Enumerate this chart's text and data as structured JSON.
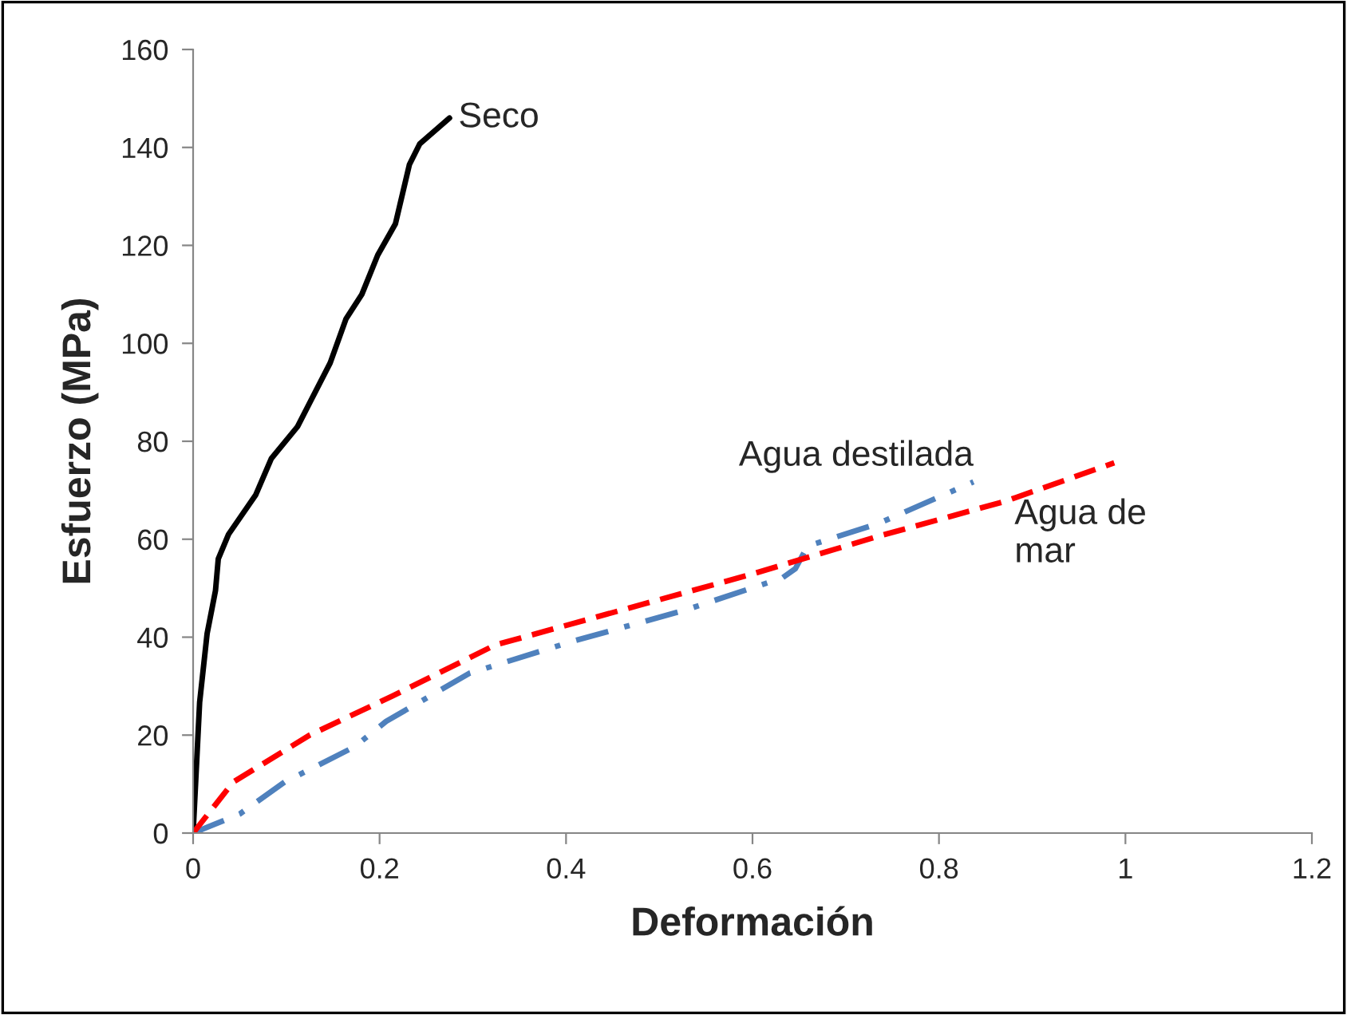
{
  "chart_data": {
    "type": "line",
    "xlabel": "Deformación",
    "ylabel": "Esfuerzo (MPa)",
    "xlim": [
      0,
      1.2
    ],
    "xticks": [
      0,
      0.2,
      0.4,
      0.6,
      0.8,
      1,
      1.2
    ],
    "ylim": [
      0,
      160
    ],
    "yticks": [
      0,
      20,
      40,
      60,
      80,
      100,
      120,
      140,
      160
    ],
    "grid": false,
    "legend": false,
    "series": [
      {
        "name": "Seco",
        "color": "#000000",
        "line_style": "solid",
        "x": [
          0,
          0.007,
          0.015,
          0.024,
          0.027,
          0.038,
          0.067,
          0.084,
          0.112,
          0.147,
          0.164,
          0.181,
          0.198,
          0.217,
          0.232,
          0.243,
          0.275
        ],
        "values": [
          0,
          26.7,
          40.7,
          49.5,
          56,
          61,
          69,
          76.5,
          83,
          96,
          105,
          110,
          118,
          124.4,
          136.5,
          140.7,
          146
        ]
      },
      {
        "name": "Agua destilada",
        "color": "#4f81bd",
        "line_style": "dashdot",
        "x": [
          0,
          0.05,
          0.098,
          0.173,
          0.207,
          0.296,
          0.406,
          0.529,
          0.632,
          0.646,
          0.659,
          0.735,
          0.837
        ],
        "values": [
          0,
          3.9,
          10.4,
          17.6,
          22.8,
          32.6,
          39.1,
          45.6,
          52.1,
          54,
          58.6,
          63.2,
          71.7
        ]
      },
      {
        "name": "Agua de\nmar",
        "color": "#ff0000",
        "line_style": "dashed",
        "x": [
          0,
          0.043,
          0.125,
          0.214,
          0.324,
          0.461,
          0.598,
          0.735,
          0.872,
          0.988
        ],
        "values": [
          0,
          10.4,
          20,
          28,
          38.4,
          45.6,
          52.8,
          60.6,
          67.8,
          75.6
        ]
      }
    ]
  }
}
